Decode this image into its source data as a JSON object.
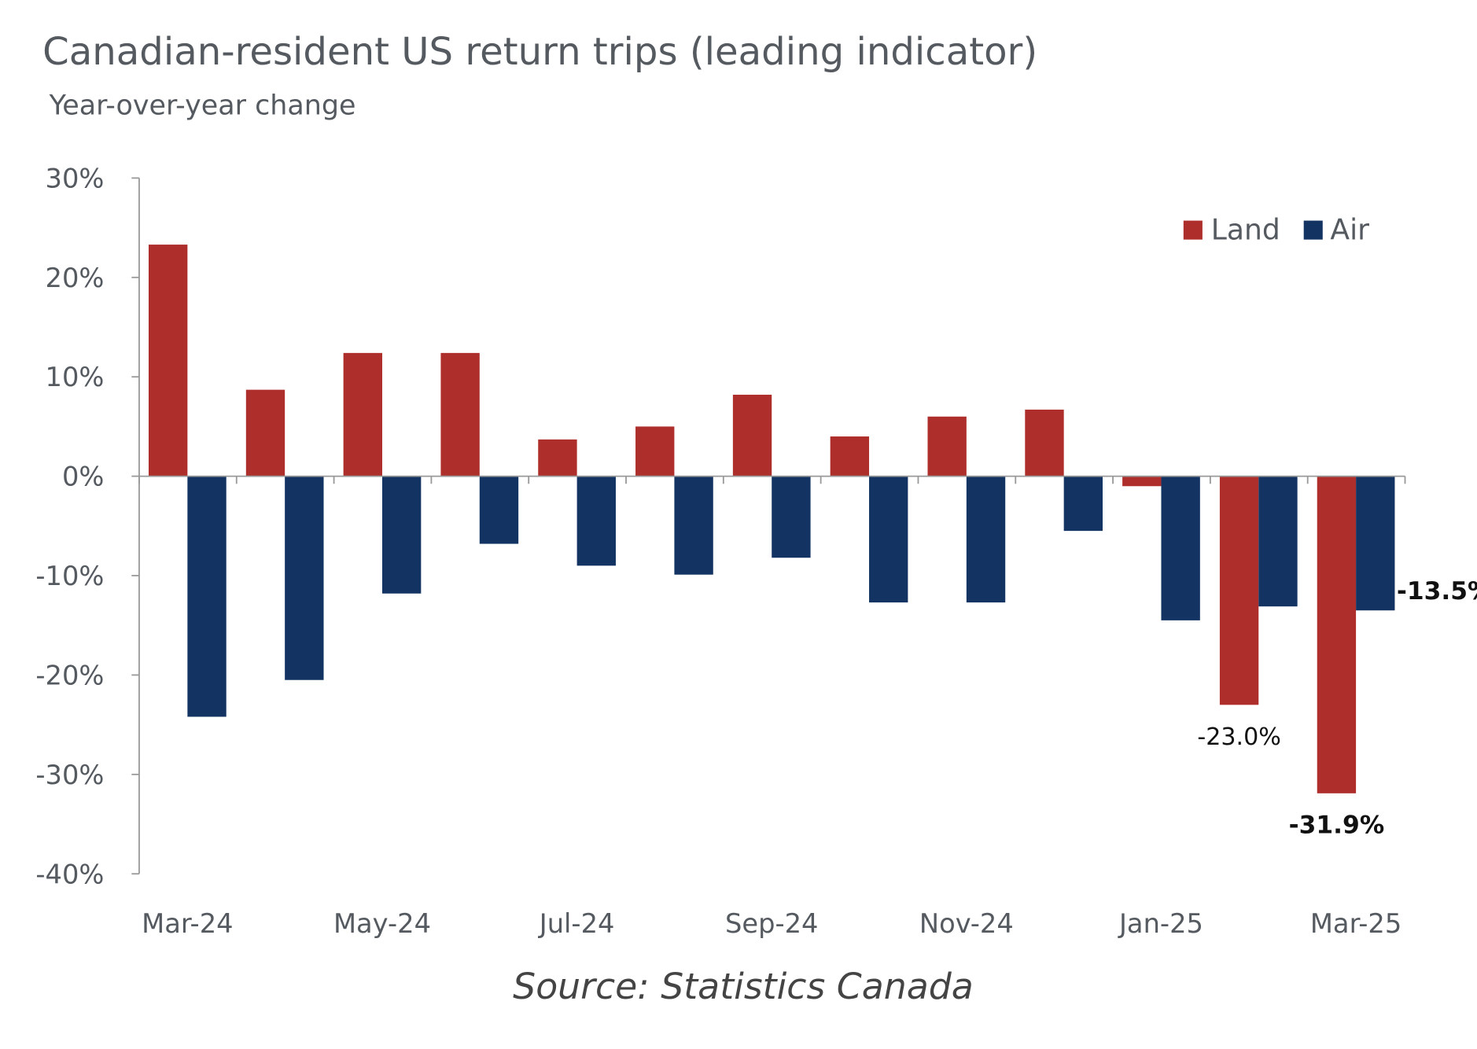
{
  "chart_data": {
    "type": "bar",
    "title": "Canadian-resident US return trips (leading indicator)",
    "subtitle": "Year-over-year change",
    "source": "Source: Statistics Canada",
    "categories": [
      "Mar-24",
      "Apr-24",
      "May-24",
      "Jun-24",
      "Jul-24",
      "Aug-24",
      "Sep-24",
      "Oct-24",
      "Nov-24",
      "Dec-24",
      "Jan-25",
      "Feb-25",
      "Mar-25"
    ],
    "x_tick_labels": [
      "Mar-24",
      "May-24",
      "Jul-24",
      "Sep-24",
      "Nov-24",
      "Jan-25",
      "Mar-25"
    ],
    "series": [
      {
        "name": "Land",
        "color": "#ae2e2b",
        "values": [
          23.3,
          8.7,
          12.4,
          12.4,
          3.7,
          5.0,
          8.2,
          4.0,
          6.0,
          6.7,
          -1.0,
          -23.0,
          -31.9
        ]
      },
      {
        "name": "Air",
        "color": "#133463",
        "values": [
          -24.2,
          -20.5,
          -11.8,
          -6.8,
          -9.0,
          -9.9,
          -8.2,
          -12.7,
          -12.7,
          -5.5,
          -14.5,
          -13.1,
          -13.5
        ]
      }
    ],
    "ylim": [
      -40,
      30
    ],
    "y_ticks": [
      30,
      20,
      10,
      0,
      -10,
      -20,
      -30,
      -40
    ],
    "y_tick_labels": [
      "30%",
      "20%",
      "10%",
      "0%",
      "-10%",
      "-20%",
      "-30%",
      "-40%"
    ],
    "data_labels": [
      {
        "series": "Land",
        "category": "Feb-25",
        "text": "-23.0%",
        "bold": false
      },
      {
        "series": "Land",
        "category": "Mar-25",
        "text": "-31.9%",
        "bold": true
      },
      {
        "series": "Air",
        "category": "Mar-25",
        "text": "-13.5%",
        "bold": true
      }
    ],
    "legend": {
      "position": "top-right",
      "entries": [
        "Land",
        "Air"
      ]
    },
    "grid": false
  }
}
